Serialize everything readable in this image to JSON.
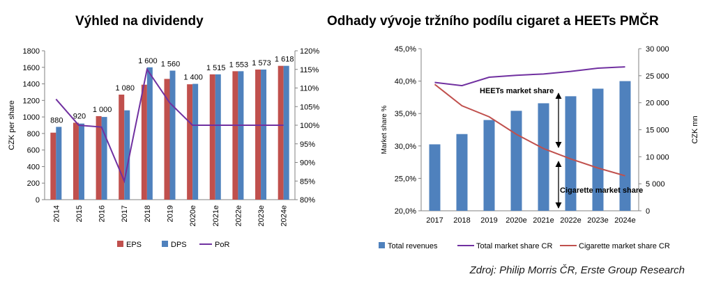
{
  "source": "Zdroj: Philip Morris ČR, Erste Group Research",
  "chart_data": [
    {
      "type": "bar",
      "title": "Výhled na dividendy",
      "categories": [
        "2014",
        "2015",
        "2016",
        "2017",
        "2018",
        "2019",
        "2020e",
        "2021e",
        "2022e",
        "2023e",
        "2024e"
      ],
      "series": [
        {
          "name": "EPS",
          "kind": "bar",
          "color": "#C0504D",
          "values": [
            810,
            930,
            1010,
            1270,
            1390,
            1460,
            1395,
            1515,
            1553,
            1573,
            1618
          ]
        },
        {
          "name": "DPS",
          "kind": "bar",
          "color": "#4F81BD",
          "values": [
            880,
            920,
            1000,
            1080,
            1600,
            1560,
            1400,
            1515,
            1553,
            1573,
            1618
          ]
        },
        {
          "name": "PoR",
          "kind": "line",
          "axis": "right",
          "color": "#7030A0",
          "values": [
            107,
            100,
            99.5,
            85,
            115,
            106,
            100,
            100,
            100,
            100,
            100
          ]
        }
      ],
      "data_labels": [
        "880",
        "920",
        "1 000",
        "1 080",
        "1 600",
        "1 560",
        "1 400",
        "1 515",
        "1 553",
        "1 573",
        "1 618"
      ],
      "ylabel": "CZK per share",
      "ylim": [
        0,
        1800
      ],
      "y_ticks": [
        "0",
        "200",
        "400",
        "600",
        "800",
        "1000",
        "1200",
        "1400",
        "1600",
        "1800"
      ],
      "y2lim": [
        80,
        120
      ],
      "y2_ticks": [
        "80%",
        "85%",
        "90%",
        "95%",
        "100%",
        "105%",
        "110%",
        "115%",
        "120%"
      ],
      "legend": [
        "EPS",
        "DPS",
        "PoR"
      ],
      "legend_position": "bottom",
      "grid": false
    },
    {
      "type": "bar",
      "title": "Odhady vývoje tržního podílu cigaret a HEETs PMČR",
      "categories": [
        "2017",
        "2018",
        "2019",
        "2020e",
        "2021e",
        "2022e",
        "2023e",
        "2024e"
      ],
      "series": [
        {
          "name": "Total revenues",
          "kind": "bar",
          "axis": "right",
          "color": "#4F81BD",
          "values": [
            12300,
            14200,
            16800,
            18500,
            19900,
            21200,
            22600,
            24000
          ]
        },
        {
          "name": "Total market share CR",
          "kind": "line",
          "axis": "left",
          "color": "#7030A0",
          "values": [
            39.8,
            39.3,
            40.6,
            40.9,
            41.1,
            41.5,
            42,
            42.2
          ]
        },
        {
          "name": "Cigarette market share CR",
          "kind": "line",
          "axis": "left",
          "color": "#C0504D",
          "values": [
            39.5,
            36.2,
            34.5,
            31.8,
            29.6,
            28,
            26.6,
            25.4
          ]
        }
      ],
      "ylabel": "Market share %",
      "ylim": [
        20,
        45
      ],
      "y_ticks": [
        "20,0%",
        "25,0%",
        "30,0%",
        "35,0%",
        "40,0%",
        "45,0%"
      ],
      "y2label": "CZK mn",
      "y2lim": [
        0,
        30000
      ],
      "y2_ticks": [
        "0",
        "5 000",
        "10 000",
        "15 000",
        "20 000",
        "25 000",
        "30 000"
      ],
      "annotations": [
        "HEETs market share",
        "Cigarette market share"
      ],
      "legend": [
        "Total revenues",
        "Total market share CR",
        "Cigarette market share CR"
      ],
      "legend_position": "bottom",
      "grid": false
    }
  ]
}
